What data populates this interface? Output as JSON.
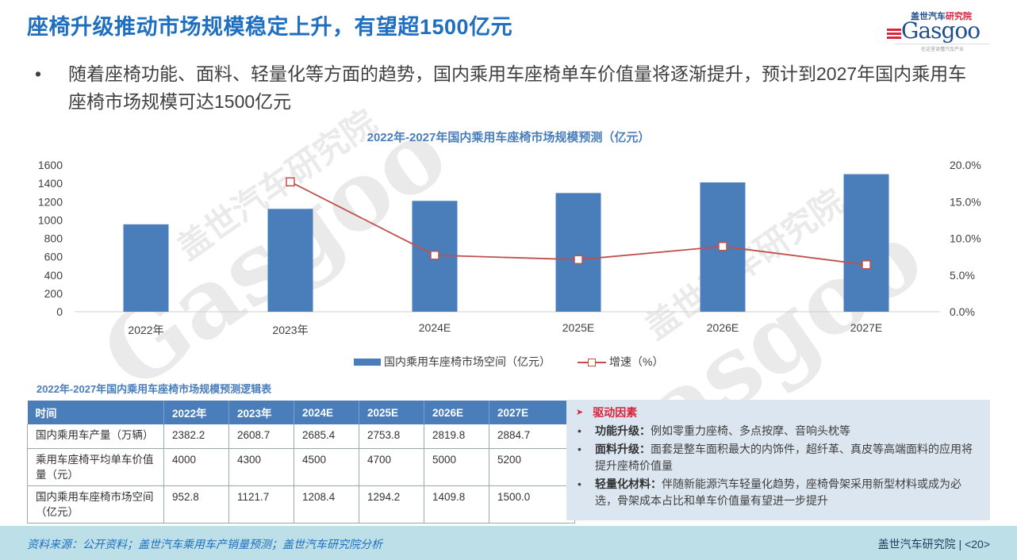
{
  "header": {
    "title": "座椅升级推动市场规模稳定上升，有望超1500亿元",
    "logo": {
      "cn_part1": "盖世汽车",
      "cn_part2": "研究院",
      "en": "asgoo",
      "tagline": "在这里读懂汽车产业"
    }
  },
  "bullet": {
    "marker": "•",
    "text": "随着座椅功能、面料、轻量化等方面的趋势，国内乘用车座椅单车价值量将逐渐提升，预计到2027年国内乘用车座椅市场规模可达1500亿元"
  },
  "chart_data": {
    "type": "bar",
    "title": "2022年-2027年国内乘用车座椅市场规模预测（亿元）",
    "categories": [
      "2022年",
      "2023年",
      "2024E",
      "2025E",
      "2026E",
      "2027E"
    ],
    "series": [
      {
        "name": "国内乘用车座椅市场空间（亿元）",
        "type": "bar",
        "axis": "left",
        "color": "#4a7ebb",
        "values": [
          952.8,
          1121.7,
          1208.4,
          1294.2,
          1409.8,
          1500.0
        ]
      },
      {
        "name": "增速（%）",
        "type": "line",
        "axis": "right",
        "color": "#c0504d",
        "values": [
          null,
          17.7,
          7.7,
          7.1,
          8.9,
          6.4
        ]
      }
    ],
    "left_axis": {
      "ticks": [
        "1600",
        "1400",
        "1200",
        "1000",
        "800",
        "600",
        "400",
        "200",
        "0"
      ],
      "ylim": [
        0,
        1600
      ]
    },
    "right_axis": {
      "ticks": [
        "20.0%",
        "15.0%",
        "10.0%",
        "5.0%",
        "0.0%"
      ],
      "ylim": [
        0,
        20
      ]
    },
    "grid": false,
    "legend_position": "bottom"
  },
  "legend": {
    "bar_label": "国内乘用车座椅市场空间（亿元）",
    "line_label": "增速（%）"
  },
  "table": {
    "title": "2022年-2027年国内乘用车座椅市场规模预测逻辑表",
    "headers": [
      "时间",
      "2022年",
      "2023年",
      "2024E",
      "2025E",
      "2026E",
      "2027E"
    ],
    "rows": [
      [
        "国内乘用车产量（万辆）",
        "2382.2",
        "2608.7",
        "2685.4",
        "2753.8",
        "2819.8",
        "2884.7"
      ],
      [
        "乘用车座椅平均单车价值量（元）",
        "4000",
        "4300",
        "4500",
        "4700",
        "5000",
        "5200"
      ],
      [
        "国内乘用车座椅市场空间（亿元）",
        "952.8",
        "1121.7",
        "1208.4",
        "1294.2",
        "1409.8",
        "1500.0"
      ]
    ]
  },
  "drivers": {
    "heading": "驱动因素",
    "items": [
      {
        "label": "功能升级：",
        "text": "例如零重力座椅、多点按摩、音响头枕等"
      },
      {
        "label": "面料升级：",
        "text": "面套是整车面积最大的内饰件，超纤革、真皮等高端面料的应用将提升座椅价值量"
      },
      {
        "label": "轻量化材料：",
        "text": "伴随新能源汽车轻量化趋势，座椅骨架采用新型材料或成为必选，骨架成本占比和单车价值量有望进一步提升"
      }
    ]
  },
  "footer": {
    "source": "资料来源：公开资料；盖世汽车乘用车产销量预测；盖世汽车研究院分析",
    "org": "盖世汽车研究院",
    "page": "| <20>"
  },
  "watermark": {
    "brand_cn": "盖世汽车研究院",
    "brand_en": "Gasgoo",
    "slogan": "在这里读懂汽车产业"
  }
}
